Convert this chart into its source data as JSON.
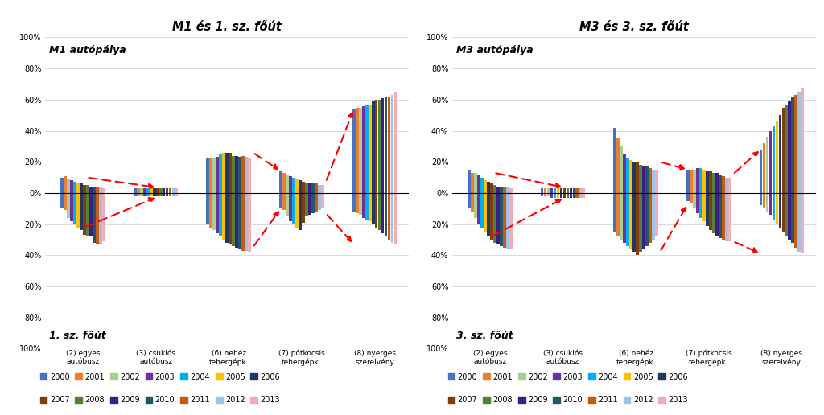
{
  "left_title": "M1 és 1. sz. főút",
  "right_title": "M3 és 3. sz. főút",
  "left_top_label": "M1 autópálya",
  "left_bot_label": "1. sz. főút",
  "right_top_label": "M3 autópálya",
  "right_bot_label": "3. sz. főút",
  "categories": [
    "(2) egyes\nautóbusz",
    "(3) csuklós\nautóbusz",
    "(6) nehéz\ntehergépk.",
    "(7) pótkocsis\ntehergépk.",
    "(8) nyerges\nszerelvény"
  ],
  "years": [
    2000,
    2001,
    2002,
    2003,
    2004,
    2005,
    2006,
    2007,
    2008,
    2009,
    2010,
    2011,
    2012,
    2013
  ],
  "year_colors": {
    "2000": "#4472C4",
    "2001": "#ED7D31",
    "2002": "#A9D18E",
    "2003": "#7030A0",
    "2004": "#00B0F0",
    "2005": "#FFC000",
    "2006": "#1F3864",
    "2007": "#843C0C",
    "2008": "#538135",
    "2009": "#3D1D8A",
    "2010": "#215868",
    "2011": "#C55A11",
    "2012": "#9DC3E6",
    "2013": "#F4ABBA"
  },
  "M1_top": {
    "(2) egyes\nautóbusz": [
      10,
      11,
      9,
      8,
      7,
      6,
      6,
      5,
      5,
      4,
      4,
      4,
      4,
      3
    ],
    "(3) csuklós\nautóbusz": [
      3,
      3,
      3,
      3,
      3,
      3,
      3,
      3,
      3,
      3,
      3,
      3,
      3,
      3
    ],
    "(6) nehéz\ntehergépk.": [
      22,
      22,
      22,
      23,
      25,
      26,
      26,
      26,
      24,
      24,
      23,
      24,
      23,
      22
    ],
    "(7) pótkocsis\ntehergépk.": [
      14,
      13,
      12,
      11,
      10,
      9,
      8,
      7,
      6,
      6,
      6,
      6,
      5,
      5
    ],
    "(8) nyerges\nszerelvény": [
      54,
      55,
      55,
      56,
      57,
      57,
      59,
      60,
      60,
      61,
      62,
      62,
      63,
      65
    ]
  },
  "M1_bot": {
    "(2) egyes\nautóbusz": [
      -10,
      -11,
      -16,
      -18,
      -20,
      -22,
      -24,
      -27,
      -28,
      -28,
      -32,
      -33,
      -33,
      -31
    ],
    "(3) csuklós\nautóbusz": [
      -2,
      -2,
      -2,
      -2,
      -2,
      -2,
      -2,
      -2,
      -2,
      -2,
      -2,
      -2,
      -2,
      -2
    ],
    "(6) nehéz\ntehergépk.": [
      -20,
      -22,
      -24,
      -26,
      -28,
      -30,
      -32,
      -33,
      -34,
      -35,
      -36,
      -37,
      -37,
      -38
    ],
    "(7) pótkocsis\ntehergépk.": [
      -10,
      -11,
      -15,
      -18,
      -20,
      -22,
      -24,
      -19,
      -15,
      -14,
      -13,
      -12,
      -11,
      -10
    ],
    "(8) nyerges\nszerelvény": [
      -12,
      -13,
      -14,
      -16,
      -17,
      -18,
      -20,
      -22,
      -24,
      -26,
      -28,
      -30,
      -32,
      -33
    ]
  },
  "M3_top": {
    "(2) egyes\nautóbusz": [
      15,
      13,
      13,
      12,
      10,
      8,
      7,
      6,
      5,
      4,
      4,
      4,
      4,
      3
    ],
    "(3) csuklós\nautóbusz": [
      3,
      3,
      3,
      3,
      3,
      3,
      3,
      3,
      3,
      3,
      3,
      3,
      3,
      3
    ],
    "(6) nehéz\ntehergépk.": [
      42,
      35,
      30,
      25,
      22,
      21,
      20,
      20,
      18,
      17,
      17,
      16,
      15,
      15
    ],
    "(7) pótkocsis\ntehergépk.": [
      15,
      15,
      15,
      16,
      16,
      15,
      14,
      14,
      13,
      13,
      12,
      11,
      10,
      10
    ],
    "(8) nyerges\nszerelvény": [
      28,
      32,
      36,
      40,
      43,
      46,
      50,
      55,
      57,
      59,
      62,
      63,
      65,
      67
    ]
  },
  "M3_bot": {
    "(2) egyes\nautóbusz": [
      -10,
      -12,
      -16,
      -20,
      -22,
      -25,
      -28,
      -30,
      -32,
      -33,
      -34,
      -35,
      -36,
      -36
    ],
    "(3) csuklós\nautóbusz": [
      -2,
      -2,
      -2,
      -3,
      -3,
      -3,
      -3,
      -3,
      -3,
      -3,
      -3,
      -3,
      -3,
      -3
    ],
    "(6) nehéz\ntehergépk.": [
      -25,
      -28,
      -30,
      -32,
      -34,
      -36,
      -38,
      -40,
      -38,
      -36,
      -34,
      -32,
      -30,
      -28
    ],
    "(7) pótkocsis\ntehergépk.": [
      -5,
      -7,
      -10,
      -13,
      -16,
      -18,
      -21,
      -24,
      -26,
      -28,
      -29,
      -30,
      -31,
      -31
    ],
    "(8) nyerges\nszerelvény": [
      -8,
      -10,
      -12,
      -14,
      -17,
      -20,
      -22,
      -25,
      -28,
      -30,
      -32,
      -35,
      -38,
      -39
    ]
  }
}
